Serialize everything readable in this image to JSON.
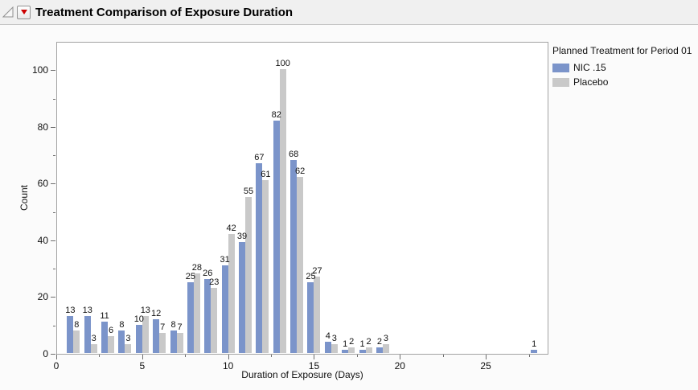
{
  "header": {
    "title": "Treatment Comparison of Exposure Duration",
    "disclosure_icon": "open-outline-triangle",
    "menu_icon": "red-triangle-menu",
    "menu_icon_color": "#cc0000"
  },
  "chart_data": {
    "type": "bar",
    "title": "Treatment Comparison of Exposure Duration",
    "xlabel": "Duration of Exposure (Days)",
    "ylabel": "Count",
    "xlim": [
      0,
      28.6
    ],
    "ylim": [
      0,
      110
    ],
    "grid": false,
    "show_value_labels": true,
    "x_major_ticks": [
      0,
      5,
      10,
      15,
      20,
      25
    ],
    "x_minor_ticks": [
      2.5,
      7.5,
      12.5,
      17.5,
      22.5,
      27.5
    ],
    "y_major_ticks": [
      0,
      20,
      40,
      60,
      80,
      100
    ],
    "y_minor_ticks": [
      10,
      30,
      50,
      70,
      90
    ],
    "x": [
      1,
      2,
      3,
      4,
      5,
      6,
      7,
      8,
      9,
      10,
      11,
      12,
      13,
      14,
      15,
      16,
      17,
      18,
      19,
      28
    ],
    "series": [
      {
        "name": "NIC .15",
        "color": "#7b94ca",
        "values": [
          13,
          13,
          11,
          8,
          10,
          12,
          8,
          25,
          26,
          31,
          39,
          67,
          82,
          68,
          25,
          4,
          1,
          1,
          2,
          1
        ]
      },
      {
        "name": "Placebo",
        "color": "#c9c9c9",
        "values": [
          8,
          3,
          6,
          3,
          13,
          7,
          7,
          28,
          23,
          42,
          55,
          61,
          100,
          62,
          27,
          3,
          2,
          2,
          3,
          null
        ]
      }
    ],
    "legend": {
      "title": "Planned Treatment for Period 01",
      "position": "right"
    }
  }
}
